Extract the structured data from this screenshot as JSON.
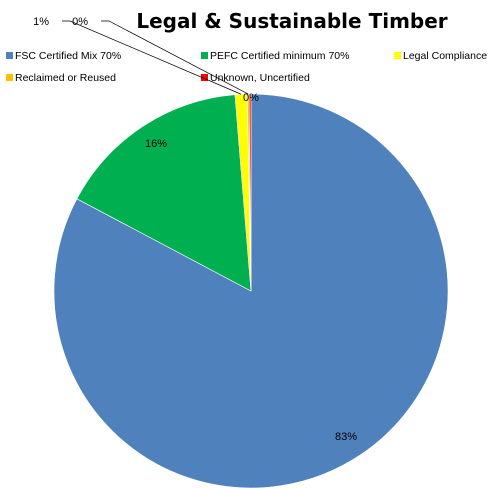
{
  "chart_data": {
    "type": "pie",
    "title": "Legal & Sustainable Timber",
    "legend_position": "top",
    "series": [
      {
        "name": "FSC Certified Mix 70%",
        "value": 83,
        "label": "83%",
        "color": "#4f81bd"
      },
      {
        "name": "PEFC Certified minimum 70%",
        "value": 16,
        "label": "16%",
        "color": "#00b050"
      },
      {
        "name": "Legal Compliance",
        "value": 1,
        "label": "1%",
        "color": "#ffff00"
      },
      {
        "name": "Reclaimed or Reused",
        "value": 0.15,
        "label": "0%",
        "color": "#ffc000"
      },
      {
        "name": "Unknown, Uncertified",
        "value": 0.15,
        "label": "0%",
        "color": "#ff0000"
      }
    ]
  }
}
